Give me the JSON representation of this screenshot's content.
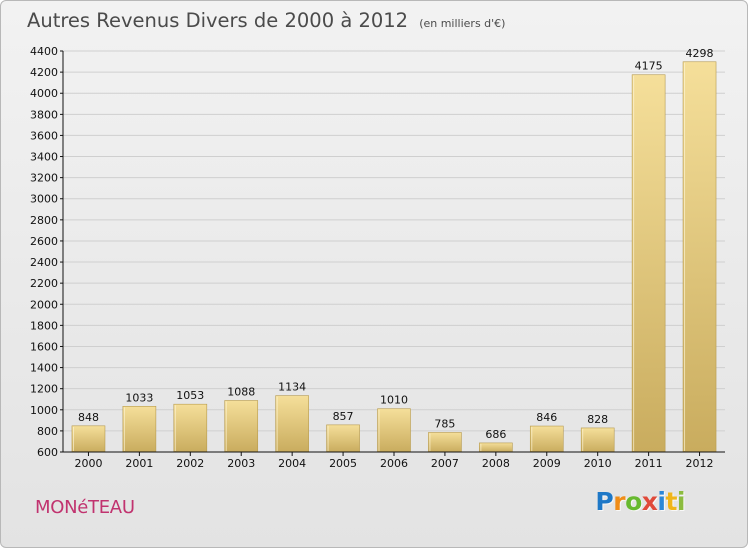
{
  "header": {
    "title": "Autres Revenus Divers de 2000 à 2012",
    "unit_note": "(en milliers d'€)"
  },
  "footer": {
    "city": "MONéTEAU",
    "brand_letters": [
      "P",
      "r",
      "o",
      "x",
      "i",
      "t",
      "i"
    ]
  },
  "chart_data": {
    "type": "bar",
    "title": "Autres Revenus Divers de 2000 à 2012",
    "subtitle": "(en milliers d'€)",
    "categories": [
      "2000",
      "2001",
      "2002",
      "2003",
      "2004",
      "2005",
      "2006",
      "2007",
      "2008",
      "2009",
      "2010",
      "2011",
      "2012"
    ],
    "values": [
      848,
      1033,
      1053,
      1088,
      1134,
      857,
      1010,
      785,
      686,
      846,
      828,
      4175,
      4298
    ],
    "ylim": [
      600,
      4400
    ],
    "yticks": [
      600,
      800,
      1000,
      1200,
      1400,
      1600,
      1800,
      2000,
      2200,
      2400,
      2600,
      2800,
      3000,
      3200,
      3400,
      3600,
      3800,
      4000,
      4200,
      4400
    ],
    "grid": true,
    "legend": "none"
  },
  "colors": {
    "background": "#ececec",
    "grid": "#cfcfcf",
    "axis": "#111111",
    "bar_top": "#f5df9a",
    "bar_bottom": "#c9ac5e",
    "bar_edge": "#b79b4f",
    "city": "#c1336f"
  }
}
